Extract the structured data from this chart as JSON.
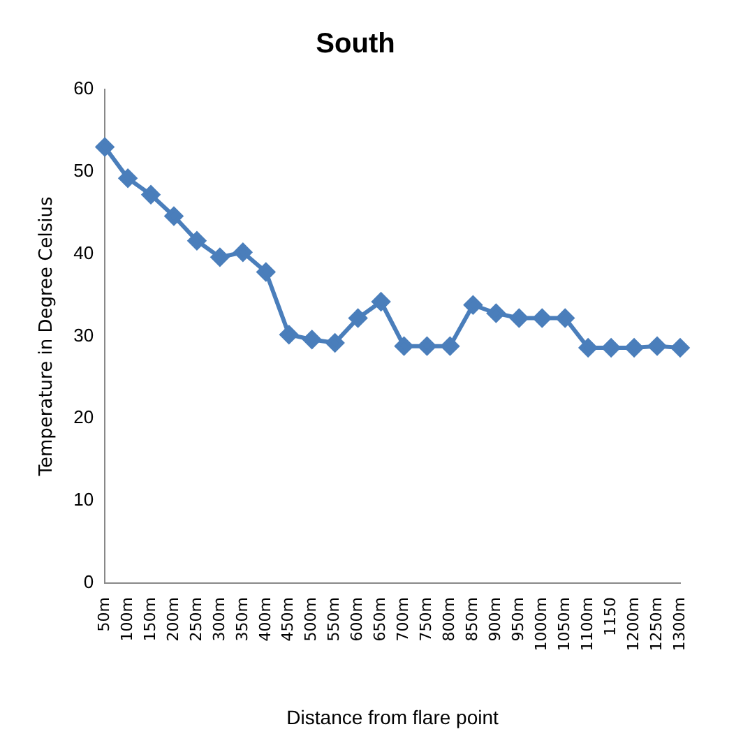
{
  "chart_data": {
    "type": "line",
    "title": "South",
    "xlabel": "Distance from flare point",
    "ylabel": "Temperature in Degree Celsius",
    "categories": [
      "50m",
      "100m",
      "150m",
      "200m",
      "250m",
      "300m",
      "350m",
      "400m",
      "450m",
      "500m",
      "550m",
      "600m",
      "650m",
      "700m",
      "750m",
      "800m",
      "850m",
      "900m",
      "950m",
      "1000m",
      "1050m",
      "1100m",
      "1150",
      "1200m",
      "1250m",
      "1300m"
    ],
    "series": [
      {
        "color": "#4a7ebb",
        "values": [
          53,
          49.2,
          47.2,
          44.6,
          41.6,
          39.6,
          40.2,
          37.8,
          30.2,
          29.6,
          29.2,
          32.2,
          34.2,
          28.8,
          28.8,
          28.8,
          33.8,
          32.8,
          32.2,
          32.2,
          32.2,
          28.6,
          28.6,
          28.6,
          28.8,
          28.6
        ]
      }
    ],
    "ylim": [
      0,
      60
    ],
    "yticks": [
      0,
      10,
      20,
      30,
      40,
      50,
      60
    ],
    "grid": false,
    "legend": false,
    "marker": "diamond",
    "line_style": "solid"
  }
}
